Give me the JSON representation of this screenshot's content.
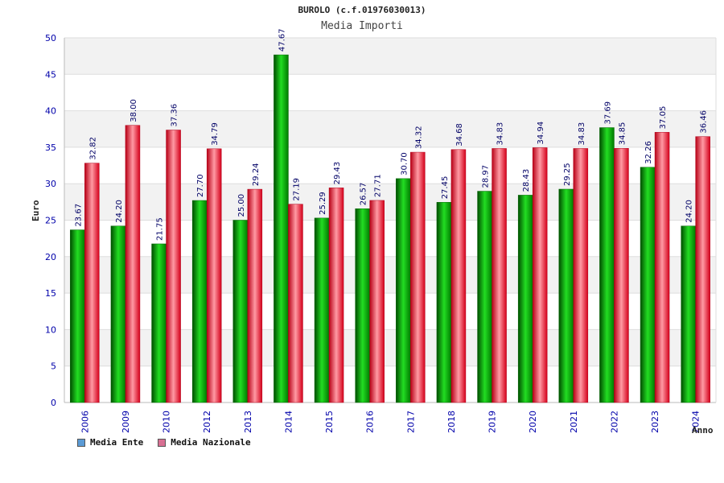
{
  "chart_data": {
    "type": "bar",
    "title": "BUROLO (c.f.01976030013)",
    "subtitle": "Media Importi",
    "xlabel": "Anno",
    "ylabel": "Euro",
    "ylim": [
      0,
      50
    ],
    "yticks": [
      0,
      5,
      10,
      15,
      20,
      25,
      30,
      35,
      40,
      45,
      50
    ],
    "grid": true,
    "legend_position": "bottom-left",
    "categories": [
      "2006",
      "2009",
      "2010",
      "2012",
      "2013",
      "2014",
      "2015",
      "2016",
      "2017",
      "2018",
      "2019",
      "2020",
      "2021",
      "2022",
      "2023",
      "2024"
    ],
    "series": [
      {
        "name": "Media Ente",
        "color": "#00aa00",
        "legend_color": "#5b9bd5",
        "values": [
          23.67,
          24.2,
          21.75,
          27.7,
          25.0,
          47.67,
          25.29,
          26.57,
          30.7,
          27.45,
          28.97,
          28.43,
          29.25,
          37.69,
          32.26,
          24.2
        ],
        "labels": [
          "23.67",
          "24.20",
          "21.75",
          "27.70",
          "25.00",
          "47.67",
          "25.29",
          "26.57",
          "30.70",
          "27.45",
          "28.97",
          "28.43",
          "29.25",
          "37.69",
          "32.26",
          "24.20"
        ]
      },
      {
        "name": "Media Nazionale",
        "color": "#e8182c",
        "legend_color": "#d87093",
        "values": [
          32.82,
          38.0,
          37.36,
          34.79,
          29.24,
          27.19,
          29.43,
          27.71,
          34.32,
          34.68,
          34.83,
          34.94,
          34.83,
          34.85,
          37.05,
          36.46
        ],
        "labels": [
          "32.82",
          "38.00",
          "37.36",
          "34.79",
          "29.24",
          "27.19",
          "29.43",
          "27.71",
          "34.32",
          "34.68",
          "34.83",
          "34.94",
          "34.83",
          "34.85",
          "37.05",
          "36.46"
        ]
      }
    ],
    "colors": {
      "axis_text": "#0000aa",
      "label_text": "#000066",
      "band": "#f2f2f2",
      "grid": "#dddddd"
    }
  }
}
